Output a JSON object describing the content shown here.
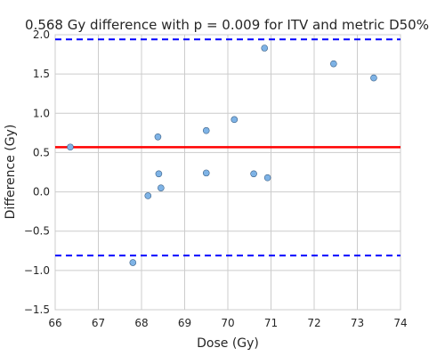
{
  "chart_data": {
    "type": "scatter",
    "title": "0.568 Gy difference with p = 0.009 for ITV and metric D50%",
    "xlabel": "Dose (Gy)",
    "ylabel": "Difference (Gy)",
    "xlim": [
      66,
      74
    ],
    "ylim": [
      -1.5,
      2.0
    ],
    "xticks": [
      66,
      67,
      68,
      69,
      70,
      71,
      72,
      73,
      74
    ],
    "yticks": [
      -1.5,
      -1.0,
      -0.5,
      0.0,
      0.5,
      1.0,
      1.5,
      2.0
    ],
    "xtick_labels": [
      "66",
      "67",
      "68",
      "69",
      "70",
      "71",
      "72",
      "73",
      "74"
    ],
    "ytick_labels": [
      "−1.5",
      "−1.0",
      "−0.5",
      "0.0",
      "0.5",
      "1.0",
      "1.5",
      "2.0"
    ],
    "grid": true,
    "mean_line": {
      "y": 0.568,
      "color": "#ff0000"
    },
    "limit_lines": {
      "upper": 1.94,
      "lower": -0.81,
      "color": "#0000ff"
    },
    "point_color": "#7eb3e6",
    "series": [
      {
        "points": [
          {
            "x": 66.35,
            "y": 0.57
          },
          {
            "x": 67.8,
            "y": -0.9
          },
          {
            "x": 68.15,
            "y": -0.05
          },
          {
            "x": 68.38,
            "y": 0.7
          },
          {
            "x": 68.4,
            "y": 0.23
          },
          {
            "x": 68.45,
            "y": 0.05
          },
          {
            "x": 69.5,
            "y": 0.78
          },
          {
            "x": 69.5,
            "y": 0.24
          },
          {
            "x": 70.15,
            "y": 0.92
          },
          {
            "x": 70.6,
            "y": 0.23
          },
          {
            "x": 70.85,
            "y": 1.83
          },
          {
            "x": 70.92,
            "y": 0.18
          },
          {
            "x": 72.45,
            "y": 1.63
          },
          {
            "x": 73.38,
            "y": 1.45
          }
        ]
      }
    ]
  }
}
